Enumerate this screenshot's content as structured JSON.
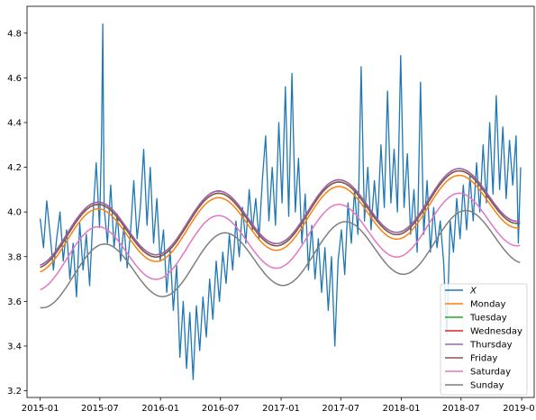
{
  "chart_data": {
    "type": "line",
    "title": "",
    "xlabel": "",
    "ylabel": "",
    "x_range": [
      "2014-11-22",
      "2019-02-08"
    ],
    "ylim": [
      3.17,
      4.92
    ],
    "x_ticks": [
      {
        "date": "2015-01-01",
        "label": "2015-01"
      },
      {
        "date": "2015-07-01",
        "label": "2015-07"
      },
      {
        "date": "2016-01-01",
        "label": "2016-01"
      },
      {
        "date": "2016-07-01",
        "label": "2016-07"
      },
      {
        "date": "2017-01-01",
        "label": "2017-01"
      },
      {
        "date": "2017-07-01",
        "label": "2017-07"
      },
      {
        "date": "2018-01-01",
        "label": "2018-01"
      },
      {
        "date": "2018-07-01",
        "label": "2018-07"
      },
      {
        "date": "2019-01-01",
        "label": "2019-01"
      }
    ],
    "y_ticks": [
      "3.2",
      "3.4",
      "3.6",
      "3.8",
      "4.0",
      "4.2",
      "4.4",
      "4.6",
      "4.8"
    ],
    "grid": false,
    "legend_position": "lower-right",
    "series": [
      {
        "name": "X",
        "color": "#1f77b4",
        "points": [
          [
            "2015-01-01",
            3.97
          ],
          [
            "2015-01-11",
            3.84
          ],
          [
            "2015-01-21",
            4.05
          ],
          [
            "2015-01-31",
            3.9
          ],
          [
            "2015-02-10",
            3.74
          ],
          [
            "2015-02-20",
            3.88
          ],
          [
            "2015-03-02",
            4.0
          ],
          [
            "2015-03-12",
            3.78
          ],
          [
            "2015-03-22",
            3.92
          ],
          [
            "2015-04-01",
            3.7
          ],
          [
            "2015-04-11",
            3.86
          ],
          [
            "2015-04-21",
            3.62
          ],
          [
            "2015-05-01",
            3.95
          ],
          [
            "2015-05-11",
            3.74
          ],
          [
            "2015-05-21",
            3.9
          ],
          [
            "2015-05-31",
            3.67
          ],
          [
            "2015-06-10",
            3.98
          ],
          [
            "2015-06-20",
            4.22
          ],
          [
            "2015-06-30",
            3.93
          ],
          [
            "2015-07-06",
            4.32
          ],
          [
            "2015-07-10",
            4.84
          ],
          [
            "2015-07-14",
            4.02
          ],
          [
            "2015-07-24",
            3.86
          ],
          [
            "2015-08-03",
            4.12
          ],
          [
            "2015-08-13",
            3.84
          ],
          [
            "2015-08-23",
            3.99
          ],
          [
            "2015-09-02",
            3.78
          ],
          [
            "2015-09-12",
            3.94
          ],
          [
            "2015-09-22",
            3.75
          ],
          [
            "2015-10-02",
            3.91
          ],
          [
            "2015-10-12",
            4.14
          ],
          [
            "2015-10-22",
            3.88
          ],
          [
            "2015-11-01",
            4.02
          ],
          [
            "2015-11-11",
            4.28
          ],
          [
            "2015-11-21",
            3.94
          ],
          [
            "2015-12-01",
            4.2
          ],
          [
            "2015-12-11",
            3.86
          ],
          [
            "2015-12-21",
            4.06
          ],
          [
            "2015-12-31",
            3.78
          ],
          [
            "2016-01-10",
            3.92
          ],
          [
            "2016-01-20",
            3.64
          ],
          [
            "2016-01-30",
            3.83
          ],
          [
            "2016-02-09",
            3.56
          ],
          [
            "2016-02-19",
            3.76
          ],
          [
            "2016-02-29",
            3.35
          ],
          [
            "2016-03-10",
            3.6
          ],
          [
            "2016-03-20",
            3.3
          ],
          [
            "2016-03-30",
            3.55
          ],
          [
            "2016-04-09",
            3.25
          ],
          [
            "2016-04-19",
            3.58
          ],
          [
            "2016-04-29",
            3.38
          ],
          [
            "2016-05-09",
            3.62
          ],
          [
            "2016-05-19",
            3.44
          ],
          [
            "2016-05-29",
            3.7
          ],
          [
            "2016-06-08",
            3.52
          ],
          [
            "2016-06-18",
            3.78
          ],
          [
            "2016-06-28",
            3.6
          ],
          [
            "2016-07-08",
            3.82
          ],
          [
            "2016-07-18",
            3.68
          ],
          [
            "2016-07-28",
            3.9
          ],
          [
            "2016-08-07",
            3.74
          ],
          [
            "2016-08-17",
            3.96
          ],
          [
            "2016-08-27",
            3.8
          ],
          [
            "2016-09-06",
            4.02
          ],
          [
            "2016-09-16",
            3.86
          ],
          [
            "2016-09-26",
            4.1
          ],
          [
            "2016-10-06",
            3.92
          ],
          [
            "2016-10-16",
            4.06
          ],
          [
            "2016-10-26",
            3.88
          ],
          [
            "2016-11-05",
            4.14
          ],
          [
            "2016-11-15",
            4.34
          ],
          [
            "2016-11-25",
            3.96
          ],
          [
            "2016-12-05",
            4.2
          ],
          [
            "2016-12-15",
            3.94
          ],
          [
            "2016-12-25",
            4.4
          ],
          [
            "2017-01-04",
            4.04
          ],
          [
            "2017-01-14",
            4.56
          ],
          [
            "2017-01-24",
            3.98
          ],
          [
            "2017-02-03",
            4.62
          ],
          [
            "2017-02-13",
            4.0
          ],
          [
            "2017-02-23",
            4.24
          ],
          [
            "2017-03-05",
            3.86
          ],
          [
            "2017-03-15",
            4.08
          ],
          [
            "2017-03-25",
            3.74
          ],
          [
            "2017-04-04",
            3.94
          ],
          [
            "2017-04-14",
            3.7
          ],
          [
            "2017-04-24",
            3.88
          ],
          [
            "2017-05-04",
            3.64
          ],
          [
            "2017-05-14",
            3.84
          ],
          [
            "2017-05-24",
            3.56
          ],
          [
            "2017-06-03",
            3.8
          ],
          [
            "2017-06-13",
            3.4
          ],
          [
            "2017-06-23",
            3.78
          ],
          [
            "2017-07-03",
            3.92
          ],
          [
            "2017-07-13",
            3.72
          ],
          [
            "2017-07-23",
            4.04
          ],
          [
            "2017-08-02",
            3.86
          ],
          [
            "2017-08-12",
            4.1
          ],
          [
            "2017-08-22",
            3.9
          ],
          [
            "2017-09-01",
            4.65
          ],
          [
            "2017-09-11",
            3.96
          ],
          [
            "2017-09-21",
            4.2
          ],
          [
            "2017-10-01",
            3.92
          ],
          [
            "2017-10-11",
            4.14
          ],
          [
            "2017-10-21",
            3.96
          ],
          [
            "2017-10-31",
            4.3
          ],
          [
            "2017-11-10",
            4.02
          ],
          [
            "2017-11-20",
            4.54
          ],
          [
            "2017-11-30",
            4.04
          ],
          [
            "2017-12-10",
            4.28
          ],
          [
            "2017-12-20",
            4.0
          ],
          [
            "2017-12-30",
            4.7
          ],
          [
            "2018-01-09",
            4.02
          ],
          [
            "2018-01-19",
            4.26
          ],
          [
            "2018-01-29",
            3.9
          ],
          [
            "2018-02-08",
            4.1
          ],
          [
            "2018-02-18",
            3.82
          ],
          [
            "2018-02-28",
            4.58
          ],
          [
            "2018-03-10",
            3.9
          ],
          [
            "2018-03-20",
            4.14
          ],
          [
            "2018-03-30",
            3.82
          ],
          [
            "2018-04-09",
            4.02
          ],
          [
            "2018-04-19",
            3.84
          ],
          [
            "2018-04-29",
            3.96
          ],
          [
            "2018-05-09",
            3.78
          ],
          [
            "2018-05-19",
            3.45
          ],
          [
            "2018-05-29",
            3.96
          ],
          [
            "2018-06-08",
            3.82
          ],
          [
            "2018-06-18",
            4.06
          ],
          [
            "2018-06-28",
            3.88
          ],
          [
            "2018-07-08",
            4.12
          ],
          [
            "2018-07-18",
            3.92
          ],
          [
            "2018-07-28",
            4.16
          ],
          [
            "2018-08-07",
            3.96
          ],
          [
            "2018-08-17",
            4.22
          ],
          [
            "2018-08-27",
            4.0
          ],
          [
            "2018-09-06",
            4.3
          ],
          [
            "2018-09-16",
            4.04
          ],
          [
            "2018-09-26",
            4.4
          ],
          [
            "2018-10-06",
            4.08
          ],
          [
            "2018-10-16",
            4.52
          ],
          [
            "2018-10-26",
            4.1
          ],
          [
            "2018-11-05",
            4.38
          ],
          [
            "2018-11-15",
            4.06
          ],
          [
            "2018-11-25",
            4.32
          ],
          [
            "2018-12-05",
            4.12
          ],
          [
            "2018-12-15",
            4.34
          ],
          [
            "2018-12-22",
            3.86
          ],
          [
            "2018-12-29",
            4.2
          ]
        ]
      },
      {
        "name": "Monday",
        "color": "#ff7f0e",
        "mean": 3.96,
        "trend_per_year": 0.05,
        "amplitude": 0.13,
        "phase_day": 81
      },
      {
        "name": "Tuesday",
        "color": "#2ca02c",
        "mean": 3.98,
        "trend_per_year": 0.05,
        "amplitude": 0.13,
        "phase_day": 81
      },
      {
        "name": "Wednesday",
        "color": "#d62728",
        "mean": 3.99,
        "trend_per_year": 0.05,
        "amplitude": 0.13,
        "phase_day": 81
      },
      {
        "name": "Thursday",
        "color": "#9467bd",
        "mean": 3.99,
        "trend_per_year": 0.05,
        "amplitude": 0.13,
        "phase_day": 81
      },
      {
        "name": "Friday",
        "color": "#8c564b",
        "mean": 3.98,
        "trend_per_year": 0.05,
        "amplitude": 0.13,
        "phase_day": 81
      },
      {
        "name": "Saturday",
        "color": "#e377c2",
        "mean": 3.88,
        "trend_per_year": 0.05,
        "amplitude": 0.13,
        "phase_day": 81
      },
      {
        "name": "Sunday",
        "color": "#7f7f7f",
        "mean": 3.8,
        "trend_per_year": 0.05,
        "amplitude": 0.13,
        "phase_day": 101
      }
    ]
  }
}
